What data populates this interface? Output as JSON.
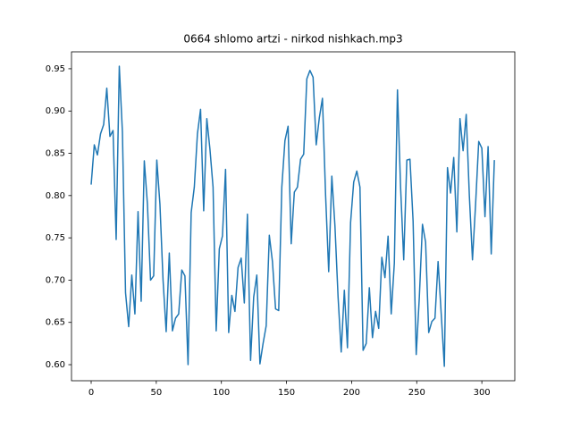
{
  "chart_data": {
    "type": "line",
    "title": "0664 shlomo artzi - nirkod nishkach.mp3",
    "x": [
      0,
      2.4,
      4.8,
      7.2,
      9.6,
      12,
      14.4,
      16.8,
      19.2,
      21.6,
      24,
      26.4,
      28.8,
      31.2,
      33.6,
      36,
      38.4,
      40.8,
      43.2,
      45.6,
      48,
      50.4,
      52.8,
      55.2,
      57.6,
      60,
      62.4,
      64.8,
      67.2,
      69.6,
      72,
      74.4,
      76.8,
      79.2,
      81.6,
      84,
      86.4,
      88.8,
      91.2,
      93.6,
      96,
      98.4,
      100.8,
      103.2,
      105.6,
      108,
      110.4,
      112.8,
      115.2,
      117.6,
      120,
      122.4,
      124.8,
      127.2,
      129.6,
      132,
      134.4,
      136.8,
      139.2,
      141.6,
      144,
      146.4,
      148.8,
      151.2,
      153.6,
      156,
      158.4,
      160.8,
      163.2,
      165.6,
      168,
      170.4,
      172.8,
      175.2,
      177.6,
      180,
      182.4,
      184.8,
      187.2,
      189.6,
      192,
      194.4,
      196.8,
      199.2,
      201.6,
      204,
      206.4,
      208.8,
      211.2,
      213.6,
      216,
      218.4,
      220.8,
      223.2,
      225.6,
      228,
      230.4,
      232.8,
      235.2,
      237.6,
      240,
      242.4,
      244.8,
      247.2,
      249.6,
      252,
      254.4,
      256.8,
      259.2,
      261.6,
      264,
      266.4,
      268.8,
      271.2,
      273.6,
      276,
      278.4,
      280.8,
      283.2,
      285.6,
      288,
      290.4,
      292.8,
      295.2,
      297.6,
      300,
      302.4,
      304.8,
      307.2,
      309.6
    ],
    "series": [
      {
        "color": "#1f77b4",
        "values": [
          0.813,
          0.86,
          0.848,
          0.873,
          0.884,
          0.927,
          0.87,
          0.877,
          0.748,
          0.953,
          0.875,
          0.685,
          0.645,
          0.706,
          0.66,
          0.781,
          0.675,
          0.841,
          0.79,
          0.7,
          0.705,
          0.842,
          0.79,
          0.7,
          0.639,
          0.732,
          0.64,
          0.655,
          0.66,
          0.712,
          0.705,
          0.6,
          0.78,
          0.81,
          0.873,
          0.902,
          0.782,
          0.891,
          0.855,
          0.81,
          0.64,
          0.737,
          0.752,
          0.831,
          0.638,
          0.682,
          0.663,
          0.715,
          0.726,
          0.673,
          0.778,
          0.605,
          0.68,
          0.706,
          0.601,
          0.625,
          0.646,
          0.753,
          0.722,
          0.666,
          0.664,
          0.81,
          0.865,
          0.882,
          0.743,
          0.804,
          0.81,
          0.843,
          0.849,
          0.938,
          0.948,
          0.94,
          0.86,
          0.892,
          0.915,
          0.801,
          0.71,
          0.823,
          0.764,
          0.68,
          0.615,
          0.688,
          0.62,
          0.768,
          0.816,
          0.829,
          0.81,
          0.617,
          0.625,
          0.691,
          0.632,
          0.663,
          0.643,
          0.727,
          0.703,
          0.752,
          0.66,
          0.72,
          0.925,
          0.81,
          0.724,
          0.842,
          0.843,
          0.77,
          0.612,
          0.68,
          0.766,
          0.745,
          0.638,
          0.651,
          0.655,
          0.722,
          0.66,
          0.598,
          0.833,
          0.803,
          0.845,
          0.757,
          0.891,
          0.853,
          0.896,
          0.8,
          0.724,
          0.79,
          0.864,
          0.856,
          0.775,
          0.858,
          0.731,
          0.842
        ]
      }
    ],
    "xlim": [
      -15.1,
      325.3
    ],
    "xticks": [
      0,
      50,
      100,
      150,
      200,
      250,
      300
    ],
    "ylim": [
      0.581,
      0.97
    ],
    "yticks": [
      {
        "value": 0.6,
        "label": "0.60"
      },
      {
        "value": 0.65,
        "label": "0.65"
      },
      {
        "value": 0.7,
        "label": "0.70"
      },
      {
        "value": 0.75,
        "label": "0.75"
      },
      {
        "value": 0.8,
        "label": "0.80"
      },
      {
        "value": 0.85,
        "label": "0.85"
      },
      {
        "value": 0.9,
        "label": "0.90"
      },
      {
        "value": 0.95,
        "label": "0.95"
      }
    ]
  }
}
